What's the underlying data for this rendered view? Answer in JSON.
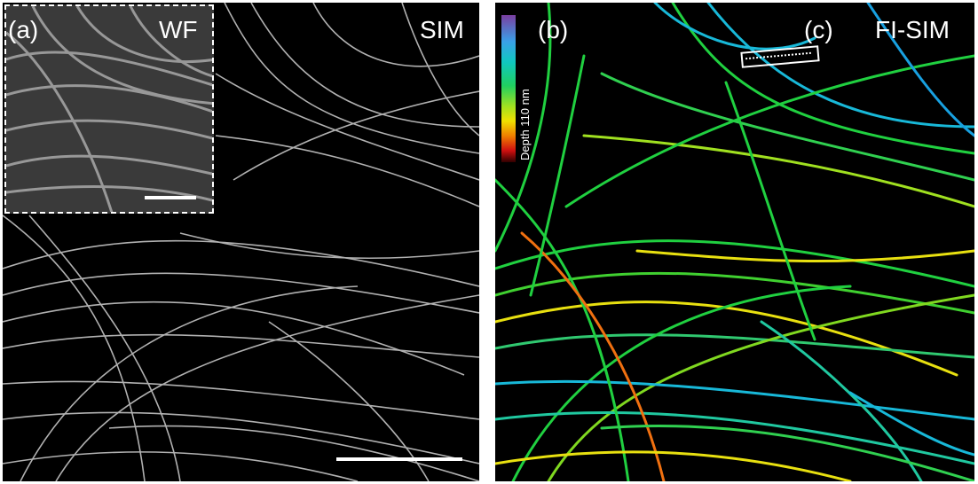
{
  "figure": {
    "left_panel": {
      "panel_label": "(a)",
      "inset_label": "WF",
      "main_label": "SIM"
    },
    "right_panel": {
      "panel_label_b": "(b)",
      "panel_label_c": "(c)",
      "main_label": "FI-SIM",
      "colorbar_label": "Depth 110 nm"
    },
    "colors": {
      "background": "#000000",
      "frame": "#ffffff",
      "filament_gray": "#d8d8d8",
      "depth_green": "#20d040",
      "depth_cyan": "#18b8d8",
      "depth_yellow": "#e8e010",
      "depth_orange": "#f07010"
    }
  }
}
